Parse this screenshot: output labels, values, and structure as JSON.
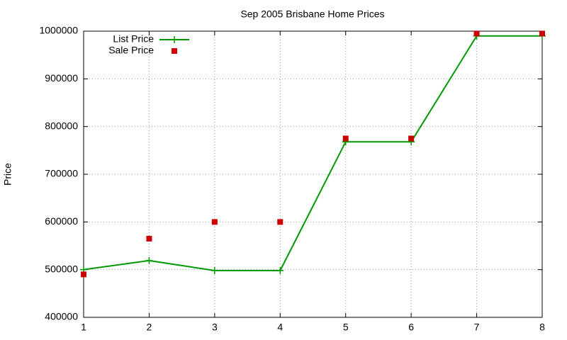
{
  "chart_data": {
    "type": "line",
    "title": "Sep 2005 Brisbane Home Prices",
    "y_label": "Price",
    "x": [
      1,
      2,
      3,
      4,
      5,
      6,
      7,
      8
    ],
    "series": [
      {
        "name": "List Price",
        "color": "#009900",
        "style": "linespoints",
        "marker": "plus",
        "values": [
          500000,
          519000,
          498000,
          498000,
          768000,
          768000,
          990000,
          990000
        ]
      },
      {
        "name": "Sale Price",
        "color": "#cc0000",
        "style": "points",
        "marker": "square",
        "values": [
          490000,
          565000,
          600000,
          600000,
          775000,
          775000,
          995000,
          995000
        ]
      }
    ],
    "xlim": [
      1,
      8
    ],
    "xticks": [
      1,
      2,
      3,
      4,
      5,
      6,
      7,
      8
    ],
    "ylim": [
      400000,
      1000000
    ],
    "yticks": [
      400000,
      500000,
      600000,
      700000,
      800000,
      900000,
      1000000
    ],
    "grid": true,
    "legend": "top-left"
  }
}
